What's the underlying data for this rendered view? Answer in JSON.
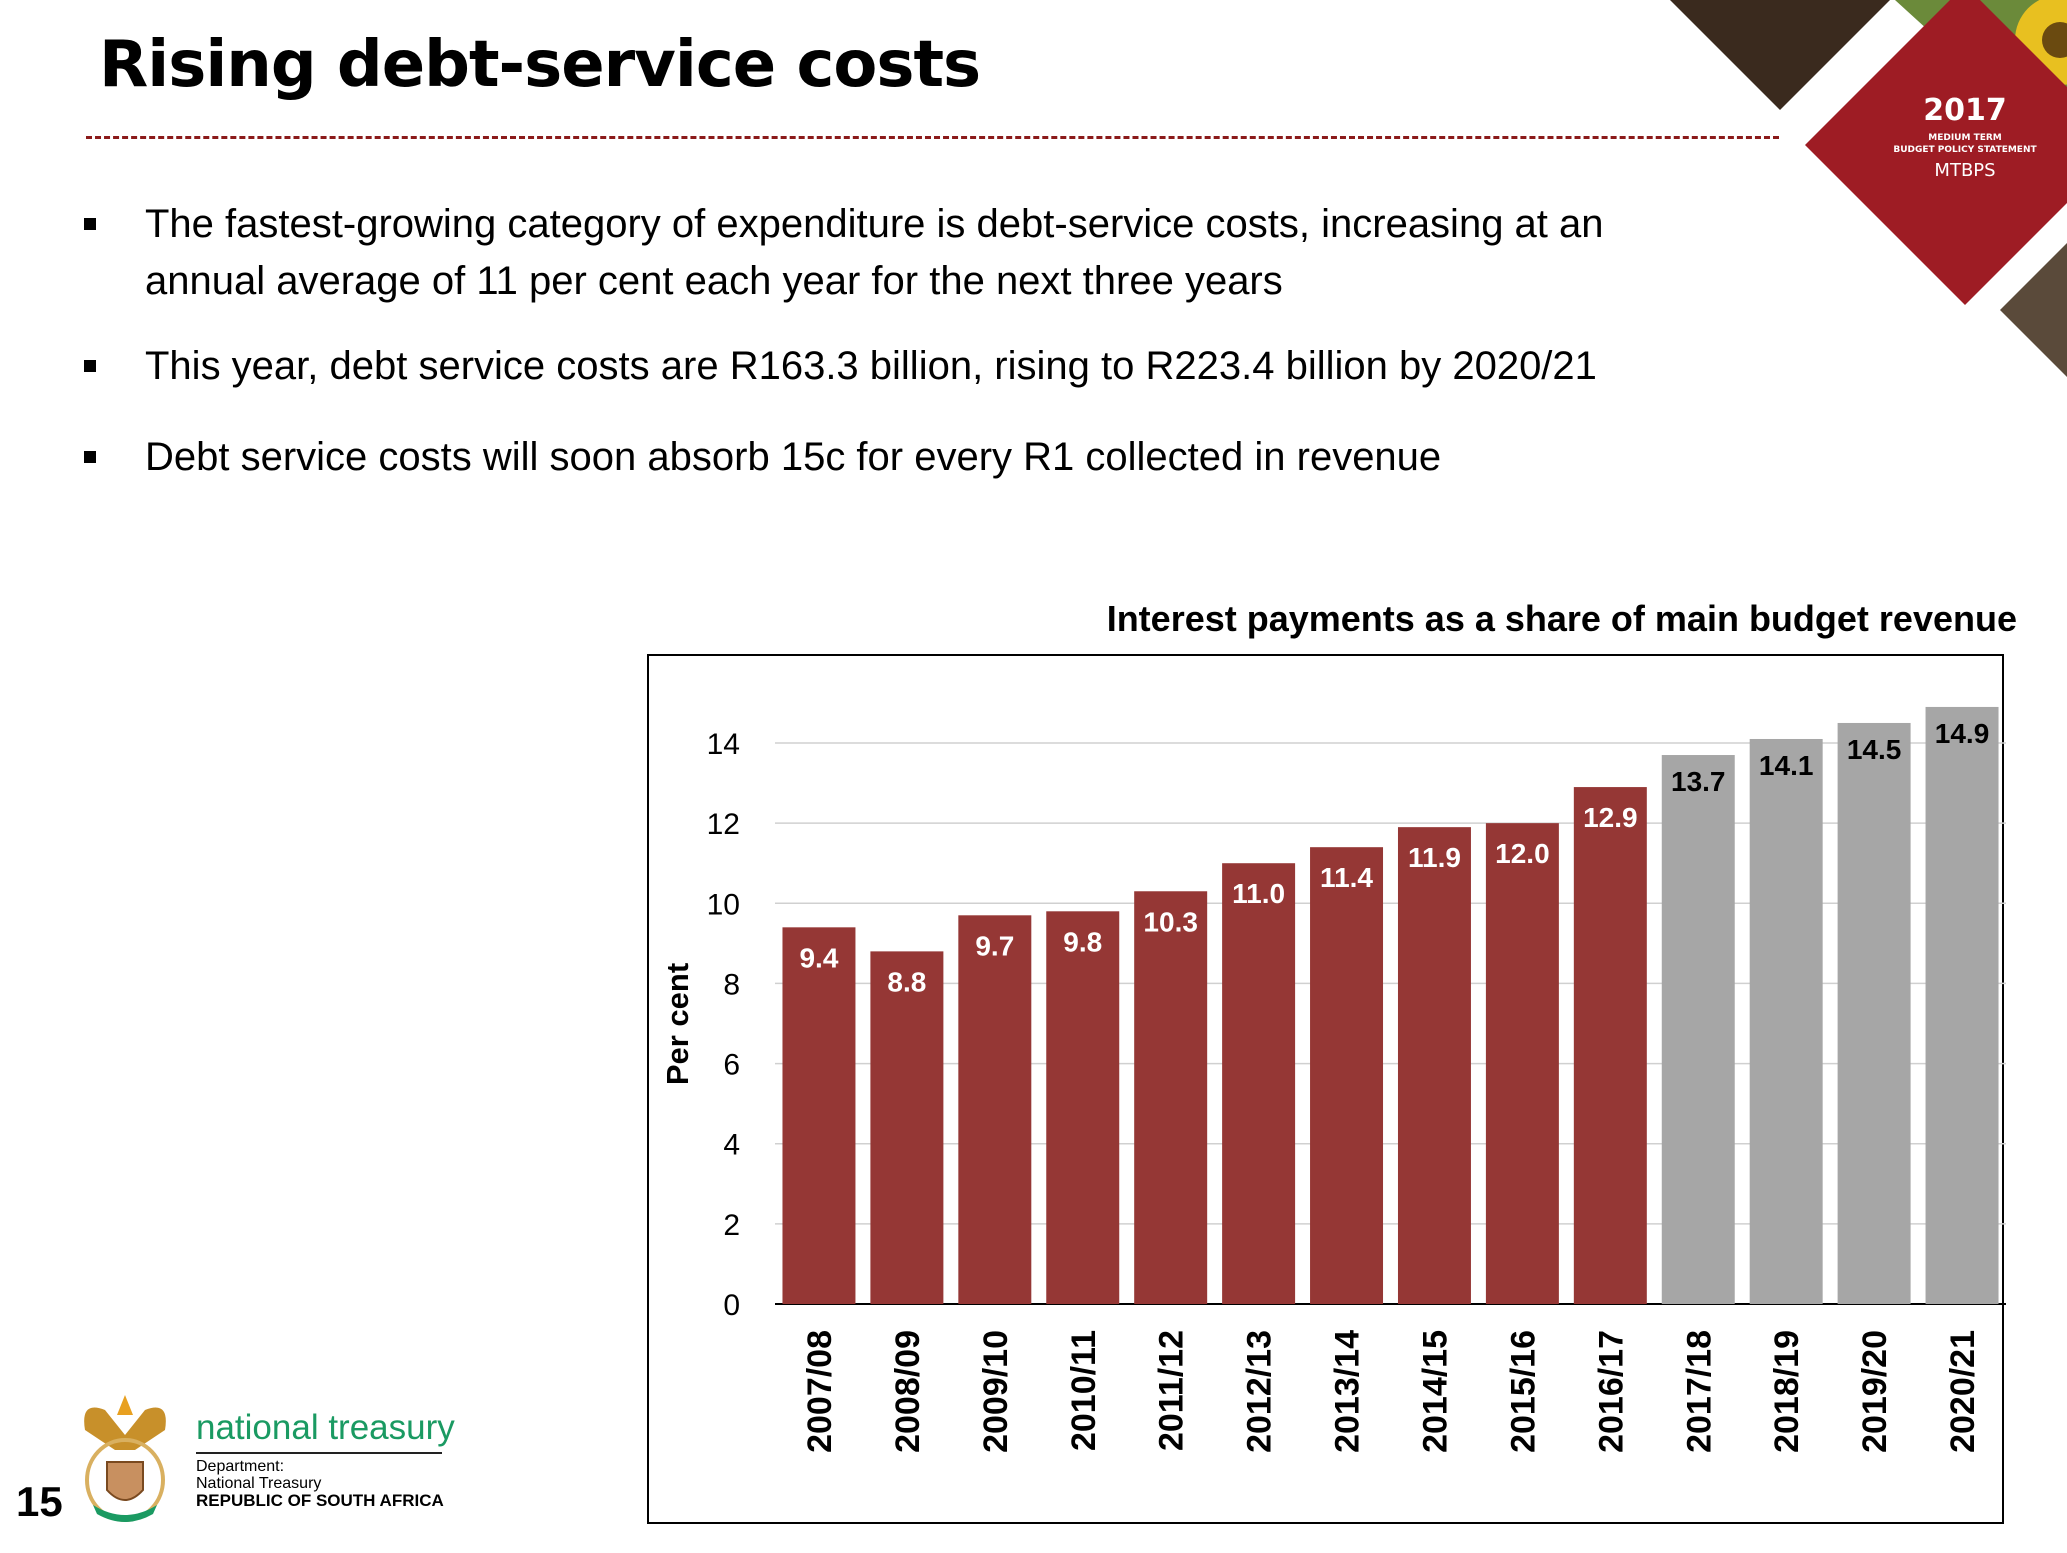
{
  "slide": {
    "title": "Rising debt-service costs",
    "page_number": "15",
    "bullets": [
      "The fastest-growing category of expenditure is debt-service costs, increasing at an annual average of 11 per cent each year for the next three years",
      "This year, debt service costs are R163.3 billion, rising to R223.4 billion by 2020/21",
      "Debt service costs will soon absorb 15c for every R1 collected in revenue"
    ]
  },
  "badge": {
    "year": "2017",
    "line1": "MEDIUM TERM",
    "line2": "BUDGET POLICY STATEMENT",
    "abbr": "MTBPS"
  },
  "footer": {
    "org": "national treasury",
    "line1": "Department:",
    "line2": "National Treasury",
    "line3": "REPUBLIC OF SOUTH AFRICA"
  },
  "colors": {
    "actual": "#953735",
    "projected": "#a6a6a6",
    "accent": "#8b1a1a",
    "brand": "#1a9a62"
  },
  "chart_data": {
    "type": "bar",
    "title": "Interest payments as a share of main budget revenue",
    "xlabel": "",
    "ylabel": "Per cent",
    "ylim": [
      0,
      14
    ],
    "yticks": [
      0,
      2,
      4,
      6,
      8,
      10,
      12,
      14
    ],
    "grid": true,
    "categories": [
      "2007/08",
      "2008/09",
      "2009/10",
      "2010/11",
      "2011/12",
      "2012/13",
      "2013/14",
      "2014/15",
      "2015/16",
      "2016/17",
      "2017/18",
      "2018/19",
      "2019/20",
      "2020/21"
    ],
    "values": [
      9.4,
      8.8,
      9.7,
      9.8,
      10.3,
      11.0,
      11.4,
      11.9,
      12.0,
      12.9,
      13.7,
      14.1,
      14.5,
      14.9
    ],
    "labels": [
      "9.4",
      "8.8",
      "9.7",
      "9.8",
      "10.3",
      "11.0",
      "11.4",
      "11.9",
      "12.0",
      "12.9",
      "13.7",
      "14.1",
      "14.5",
      "14.9"
    ],
    "series_type": [
      "actual",
      "actual",
      "actual",
      "actual",
      "actual",
      "actual",
      "actual",
      "actual",
      "actual",
      "actual",
      "projected",
      "projected",
      "projected",
      "projected"
    ]
  }
}
